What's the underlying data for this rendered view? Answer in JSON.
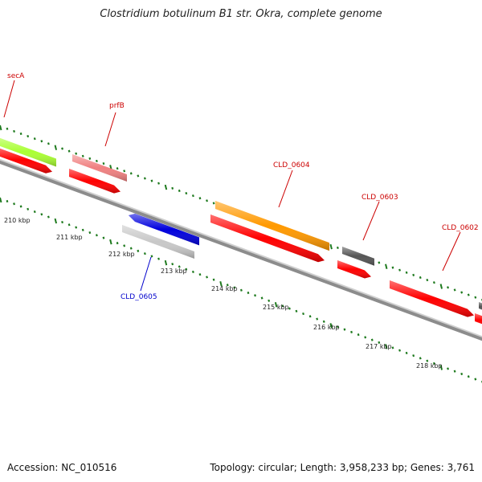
{
  "title": "Clostridium botulinum B1 str. Okra, complete genome",
  "footer": {
    "accession": "Accession: NC_010516",
    "stats": "Topology: circular; Length: 3,958,233 bp; Genes: 3,761"
  },
  "colors": {
    "backbone": "#8c8c8c",
    "ticks": "#1e7a1e",
    "gene_label_red": "#cc0000",
    "gene_label_blue": "#0000cc"
  },
  "tick_labels": [
    "210 kbp",
    "211 kbp",
    "212 kbp",
    "213 kbp",
    "214 kbp",
    "215 kbp",
    "216 kbp",
    "217 kbp",
    "218 kbp"
  ],
  "genes": [
    {
      "label": "secA",
      "color": "#aaff33",
      "strand": "forward"
    },
    {
      "label": "prfB",
      "color": "#f08080",
      "strand": "forward"
    },
    {
      "label": "CLD_0605",
      "color": "#0000dd",
      "strand": "reverse"
    },
    {
      "label": "CLD_0604",
      "color": "#ff9900",
      "strand": "forward"
    },
    {
      "label": "CLD_0603",
      "color": "#555555",
      "strand": "forward"
    },
    {
      "label": "CLD_0602",
      "color": "#ff0000",
      "strand": "forward"
    }
  ]
}
